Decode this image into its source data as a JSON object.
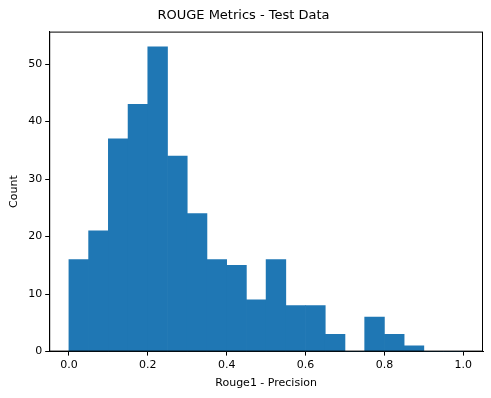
{
  "chart_data": {
    "type": "histogram",
    "title": "ROUGE Metrics - Test Data",
    "x_label": "Rouge1 - Precision",
    "y_label": "Count",
    "bins": [
      0,
      0.05,
      0.1,
      0.15,
      0.2,
      0.25,
      0.3,
      0.35,
      0.4,
      0.45,
      0.5,
      0.55,
      0.6,
      0.65,
      0.7,
      0.75,
      0.8,
      0.85,
      0.9,
      0.95,
      1.0
    ],
    "values": [
      16,
      21,
      37,
      43,
      53,
      34,
      24,
      16,
      15,
      9,
      16,
      8,
      8,
      3,
      0,
      6,
      3,
      1,
      0,
      0
    ],
    "color": "#1f77b4",
    "xlim": [
      -0.05,
      1.05
    ],
    "xticks": [
      {
        "value": 0,
        "label": "0.0"
      },
      0.2,
      0.4,
      0.6,
      0.8,
      {
        "value": 1.0,
        "label": "1.0"
      }
    ],
    "ylim": [
      0,
      55.65
    ],
    "yticks": [
      0,
      10,
      20,
      30,
      40,
      50
    ],
    "grid": false
  }
}
